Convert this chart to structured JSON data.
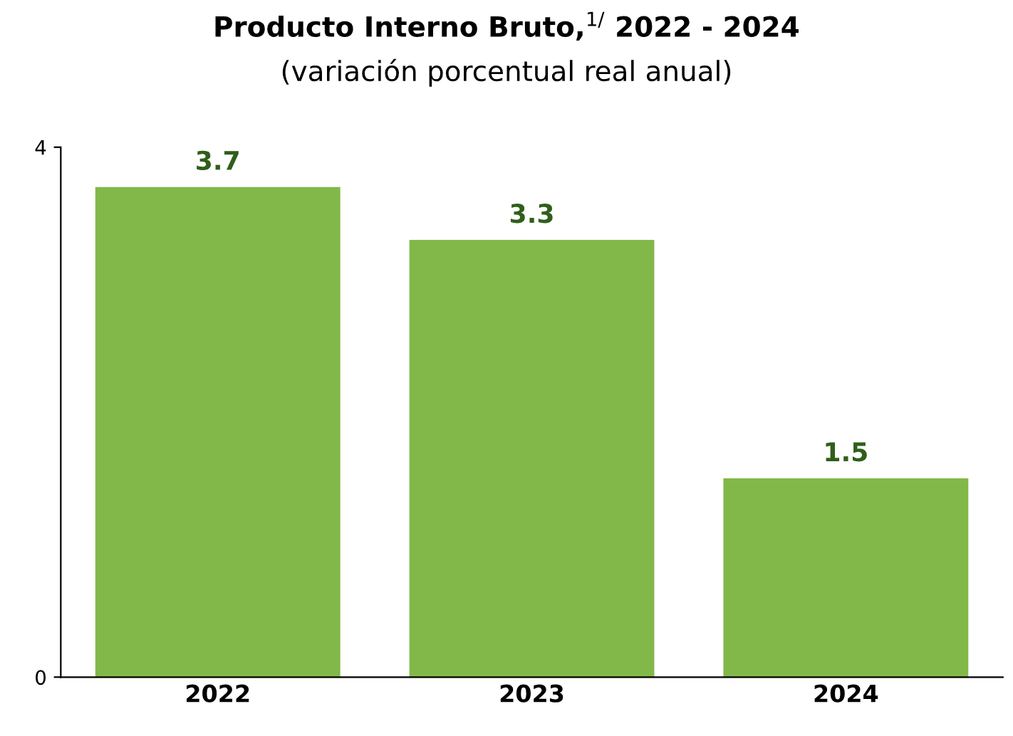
{
  "chart_data": {
    "type": "bar",
    "title": "Producto Interno Bruto,$^{1/}$ 2022 - 2024",
    "subtitle": "(variación porcentual real anual)",
    "categories": [
      "2022",
      "2023",
      "2024"
    ],
    "values": [
      3.7,
      3.3,
      1.5
    ],
    "color": "#82b84a",
    "ylim": [
      0,
      4
    ],
    "yticks": [
      0,
      4
    ],
    "grid": false,
    "data_labels": true
  }
}
